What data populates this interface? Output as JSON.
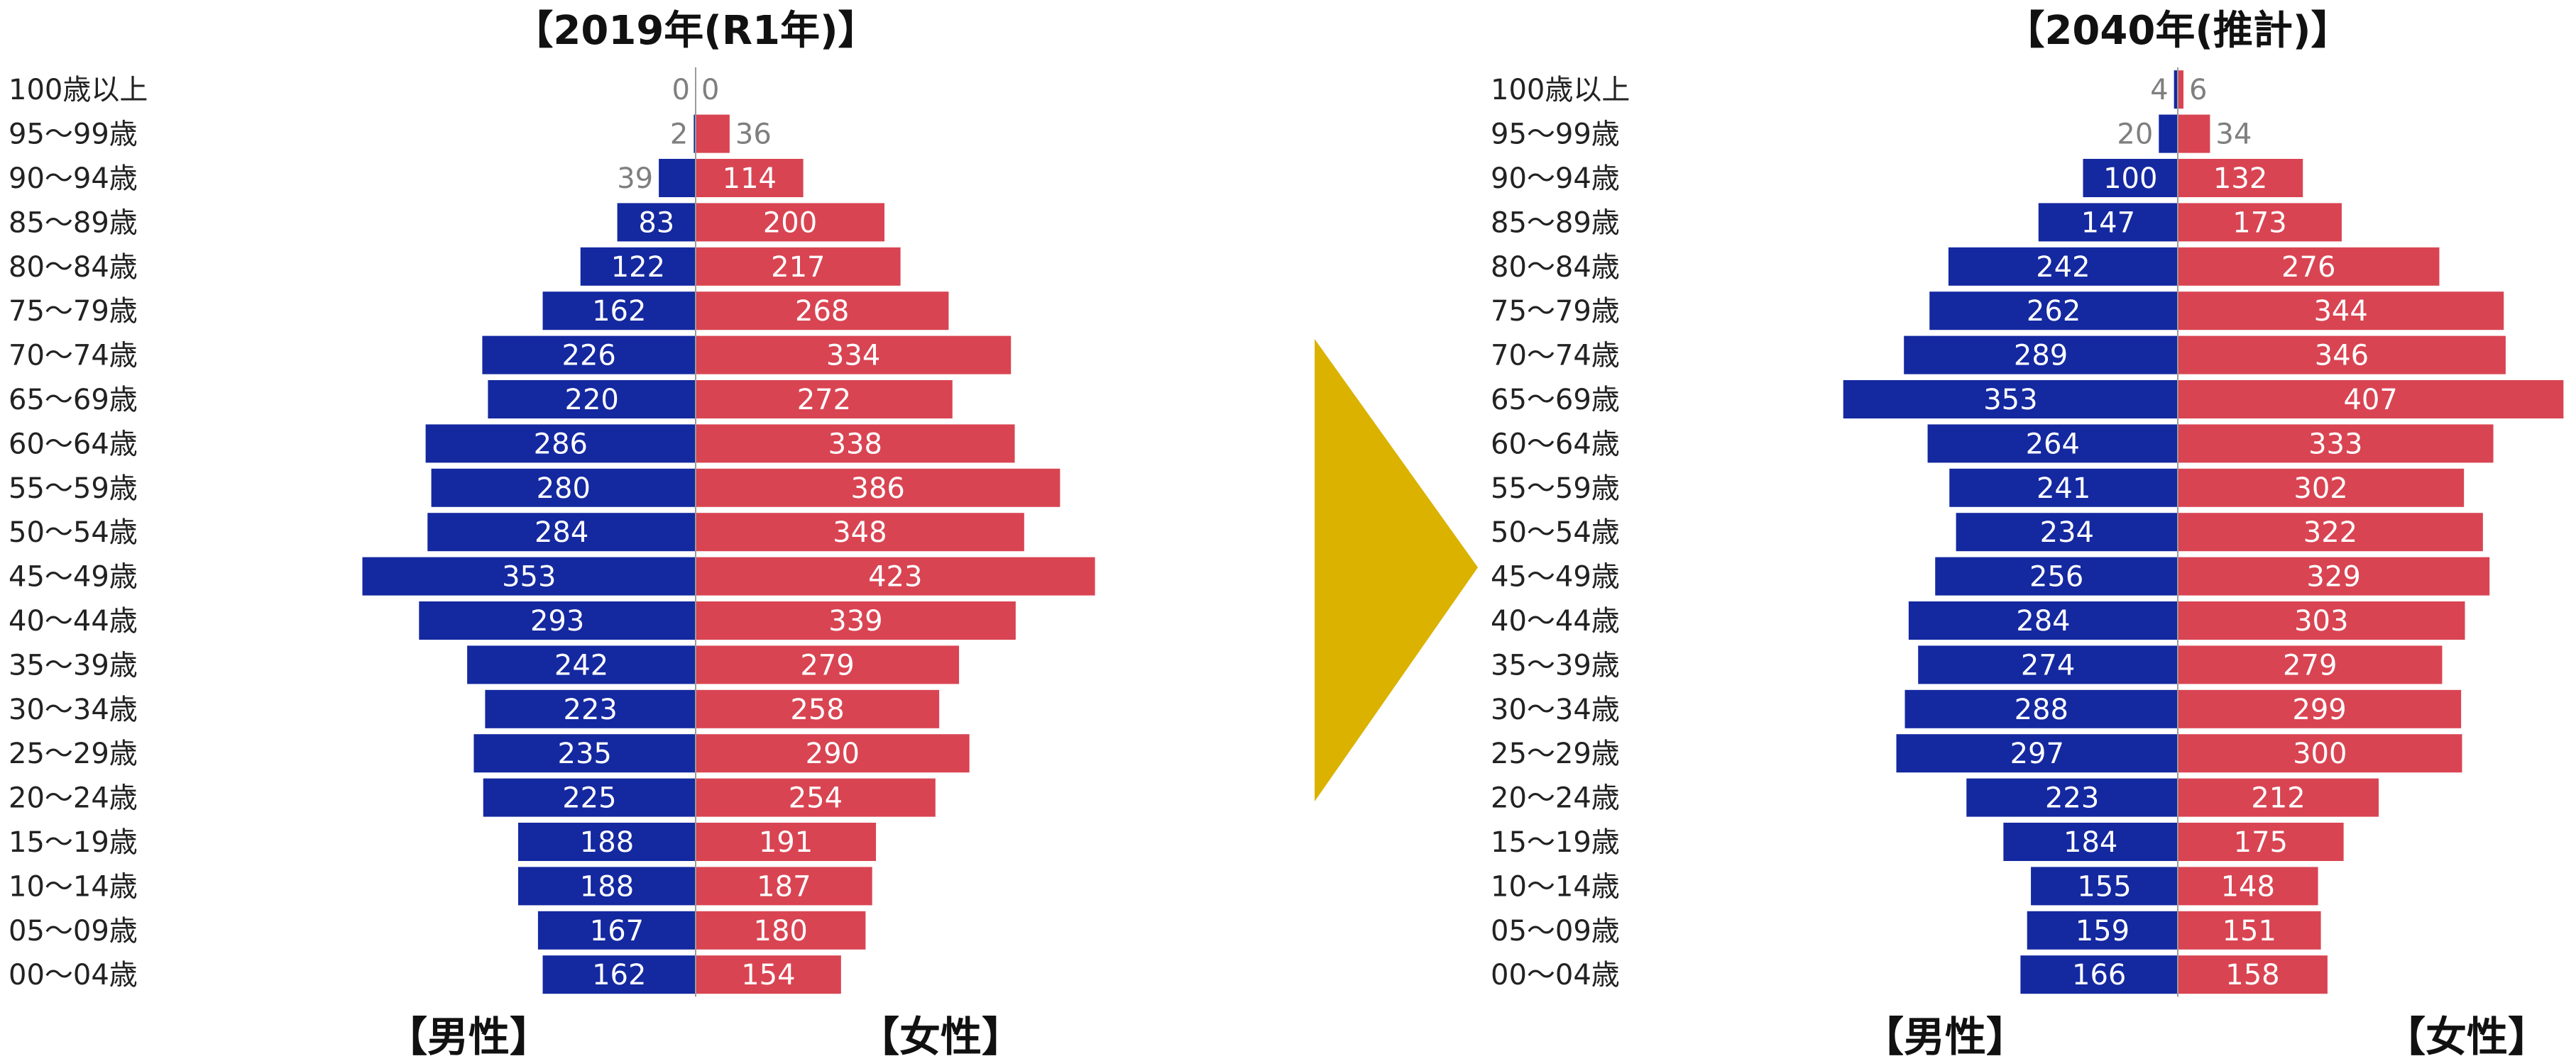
{
  "colors": {
    "male": "#1428a0",
    "female": "#d94452",
    "arrow": "#dbb200",
    "axis": "#9b9b9b"
  },
  "age_groups": [
    "100歳以上",
    "95～99歳",
    "90～94歳",
    "85～89歳",
    "80～84歳",
    "75～79歳",
    "70～74歳",
    "65～69歳",
    "60～64歳",
    "55～59歳",
    "50～54歳",
    "45～49歳",
    "40～44歳",
    "35～39歳",
    "30～34歳",
    "25～29歳",
    "20～24歳",
    "15～19歳",
    "10～14歳",
    "05～09歳",
    "00～04歳"
  ],
  "chart_data": [
    {
      "type": "bar",
      "title": "【2019年(R1年)】",
      "categories": [
        "100歳以上",
        "95～99歳",
        "90～94歳",
        "85～89歳",
        "80～84歳",
        "75～79歳",
        "70～74歳",
        "65～69歳",
        "60～64歳",
        "55～59歳",
        "50～54歳",
        "45～49歳",
        "40～44歳",
        "35～39歳",
        "30～34歳",
        "25～29歳",
        "20～24歳",
        "15～19歳",
        "10～14歳",
        "05～09歳",
        "00～04歳"
      ],
      "series": [
        {
          "name": "【男性】",
          "values": [
            0,
            2,
            39,
            83,
            122,
            162,
            226,
            220,
            286,
            280,
            284,
            353,
            293,
            242,
            223,
            235,
            225,
            188,
            188,
            167,
            162
          ]
        },
        {
          "name": "【女性】",
          "values": [
            0,
            36,
            114,
            200,
            217,
            268,
            334,
            272,
            338,
            386,
            348,
            423,
            339,
            279,
            258,
            290,
            254,
            191,
            187,
            180,
            154
          ]
        }
      ]
    },
    {
      "type": "bar",
      "title": "【2040年(推計)】",
      "categories": [
        "100歳以上",
        "95～99歳",
        "90～94歳",
        "85～89歳",
        "80～84歳",
        "75～79歳",
        "70～74歳",
        "65～69歳",
        "60～64歳",
        "55～59歳",
        "50～54歳",
        "45～49歳",
        "40～44歳",
        "35～39歳",
        "30～34歳",
        "25～29歳",
        "20～24歳",
        "15～19歳",
        "10～14歳",
        "05～09歳",
        "00～04歳"
      ],
      "series": [
        {
          "name": "【男性】",
          "values": [
            4,
            20,
            100,
            147,
            242,
            262,
            289,
            353,
            264,
            241,
            234,
            256,
            284,
            274,
            288,
            297,
            223,
            184,
            155,
            159,
            166
          ]
        },
        {
          "name": "【女性】",
          "values": [
            6,
            34,
            132,
            173,
            276,
            344,
            346,
            407,
            333,
            302,
            322,
            329,
            303,
            279,
            299,
            300,
            212,
            175,
            148,
            151,
            158
          ]
        }
      ]
    }
  ]
}
